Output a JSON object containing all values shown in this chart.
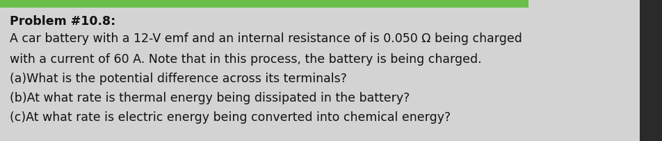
{
  "title": "Problem #10.8:",
  "lines": [
    "A car battery with a 12-V emf and an internal resistance of is 0.050 Ω being charged",
    "with a current of 60 A. Note that in this process, the battery is being charged.",
    "(a)What is the potential difference across its terminals?",
    "(b)At what rate is thermal energy being dissipated in the battery?",
    "(c)At what rate is electric energy being converted into chemical energy?"
  ],
  "bg_color": "#d3d3d3",
  "text_color": "#111111",
  "title_fontsize": 12.5,
  "body_fontsize": 12.5,
  "fig_width": 9.52,
  "fig_height": 2.05,
  "top_bar_color": "#6abf4b",
  "right_bar_color": "#2a2a2a"
}
